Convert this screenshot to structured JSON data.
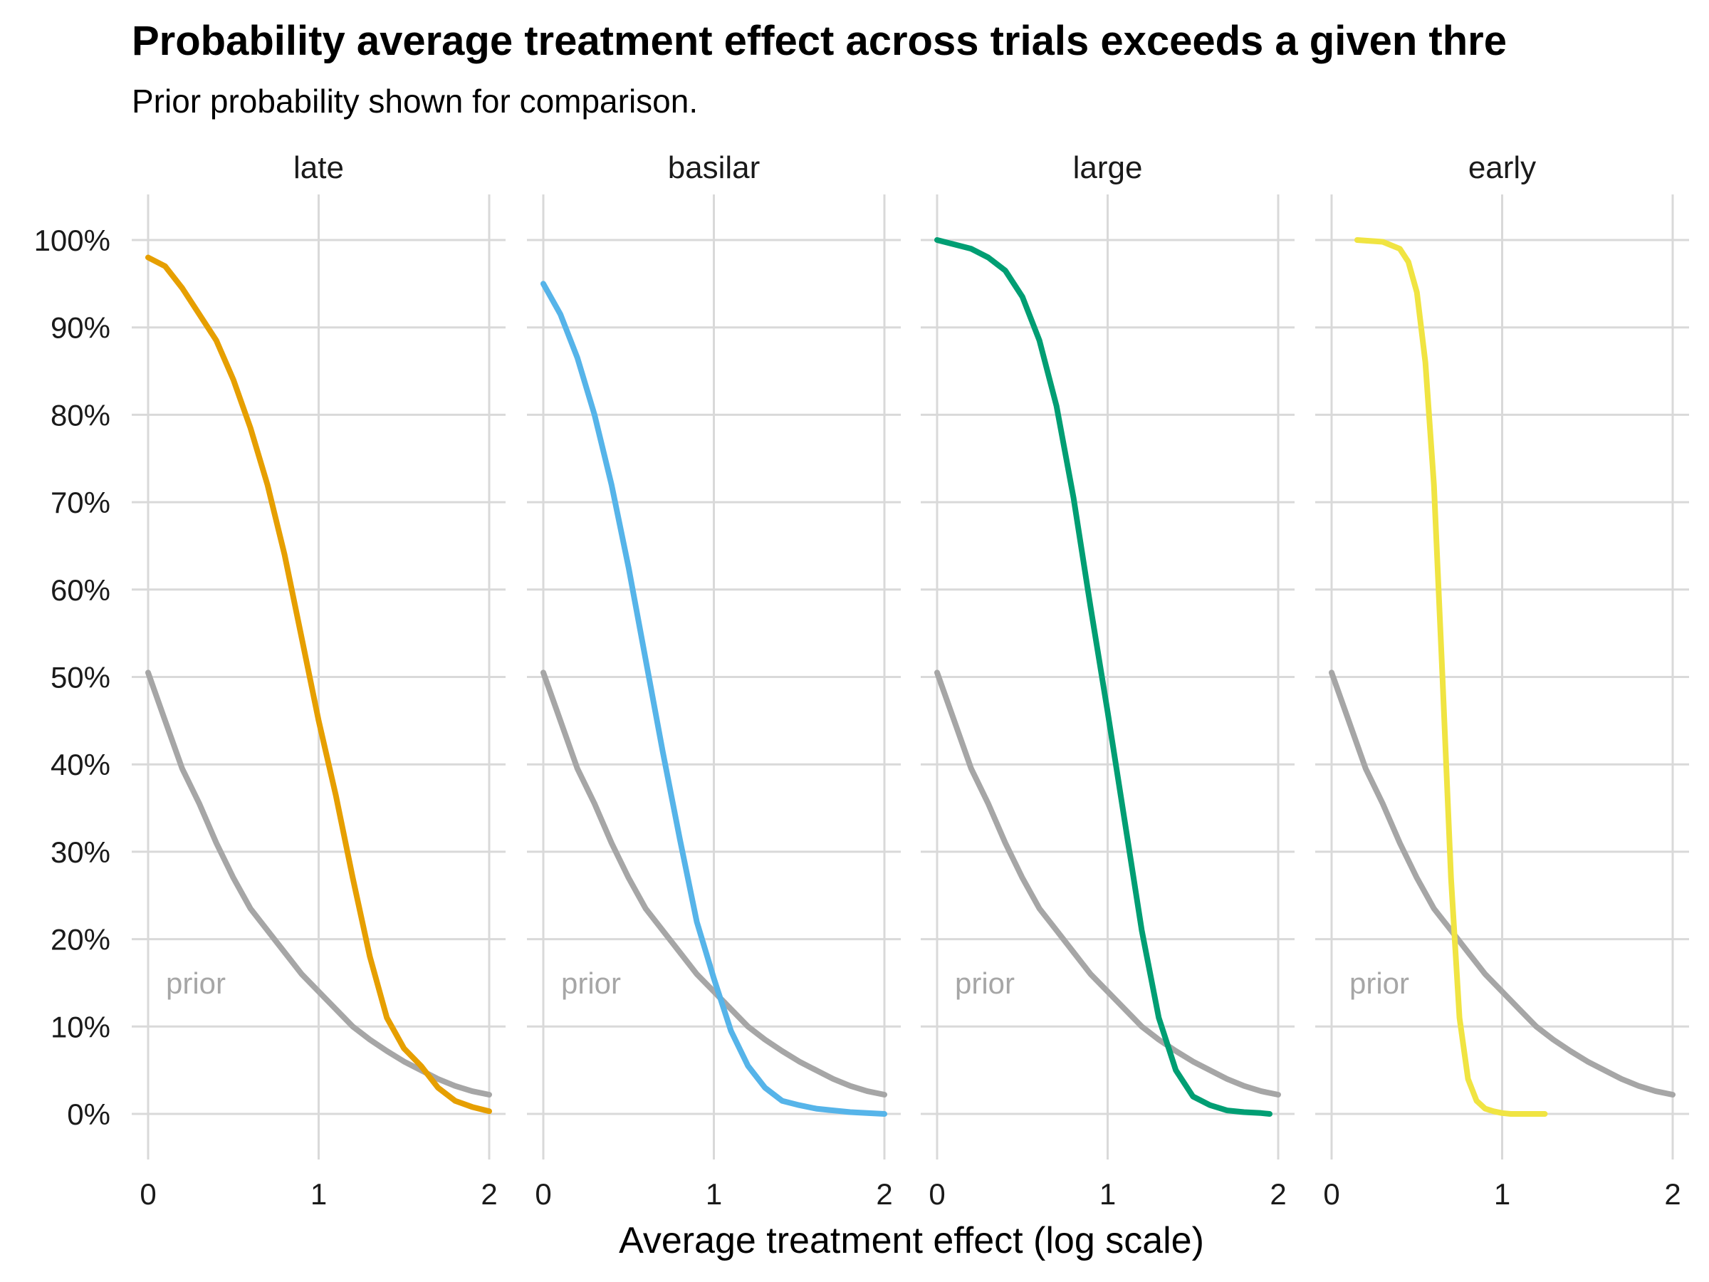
{
  "chart_data": {
    "type": "line",
    "title": "Probability average treatment effect across trials exceeds a given thre",
    "subtitle": "Prior probability shown for comparison.",
    "xlabel": "Average treatment effect (log scale)",
    "ylabel": "",
    "xlim": [
      0,
      2
    ],
    "ylim": [
      0,
      1
    ],
    "x_ticks": [
      0,
      1,
      2
    ],
    "y_ticks": [
      0,
      0.1,
      0.2,
      0.3,
      0.4,
      0.5,
      0.6,
      0.7,
      0.8,
      0.9,
      1.0
    ],
    "y_tick_labels": [
      "0%",
      "10%",
      "20%",
      "30%",
      "40%",
      "50%",
      "60%",
      "70%",
      "80%",
      "90%",
      "100%"
    ],
    "grid": true,
    "legend": "none",
    "prior_label": "prior",
    "prior_color": "#a6a6a6",
    "prior_series": {
      "x": [
        0,
        0.1,
        0.2,
        0.3,
        0.4,
        0.5,
        0.6,
        0.7,
        0.8,
        0.9,
        1.0,
        1.1,
        1.2,
        1.3,
        1.4,
        1.5,
        1.6,
        1.7,
        1.8,
        1.9,
        2.0
      ],
      "y": [
        0.505,
        0.45,
        0.395,
        0.355,
        0.31,
        0.27,
        0.235,
        0.21,
        0.185,
        0.16,
        0.14,
        0.12,
        0.1,
        0.085,
        0.072,
        0.06,
        0.05,
        0.04,
        0.032,
        0.026,
        0.022
      ]
    },
    "facets": [
      {
        "label": "late",
        "color": "#e69f00",
        "x": [
          0,
          0.1,
          0.2,
          0.3,
          0.4,
          0.5,
          0.6,
          0.7,
          0.8,
          0.9,
          1.0,
          1.1,
          1.2,
          1.3,
          1.4,
          1.5,
          1.6,
          1.7,
          1.8,
          1.9,
          2.0
        ],
        "y": [
          0.98,
          0.97,
          0.945,
          0.915,
          0.885,
          0.84,
          0.785,
          0.72,
          0.64,
          0.545,
          0.45,
          0.365,
          0.27,
          0.18,
          0.11,
          0.075,
          0.055,
          0.03,
          0.015,
          0.008,
          0.003
        ]
      },
      {
        "label": "basilar",
        "color": "#56b4e9",
        "x": [
          0,
          0.1,
          0.2,
          0.3,
          0.4,
          0.5,
          0.6,
          0.7,
          0.8,
          0.9,
          1.0,
          1.1,
          1.2,
          1.3,
          1.4,
          1.5,
          1.6,
          1.7,
          1.8,
          1.9,
          2.0
        ],
        "y": [
          0.95,
          0.915,
          0.865,
          0.8,
          0.72,
          0.625,
          0.52,
          0.415,
          0.315,
          0.22,
          0.155,
          0.095,
          0.055,
          0.03,
          0.015,
          0.01,
          0.006,
          0.004,
          0.002,
          0.001,
          0.0
        ]
      },
      {
        "label": "large",
        "color": "#009e73",
        "x": [
          0.0,
          0.1,
          0.2,
          0.3,
          0.4,
          0.5,
          0.6,
          0.7,
          0.8,
          0.9,
          1.0,
          1.1,
          1.2,
          1.3,
          1.4,
          1.5,
          1.6,
          1.7,
          1.8,
          1.9,
          1.95
        ],
        "y": [
          1.0,
          0.995,
          0.99,
          0.98,
          0.965,
          0.935,
          0.885,
          0.81,
          0.705,
          0.58,
          0.46,
          0.335,
          0.21,
          0.11,
          0.05,
          0.02,
          0.01,
          0.004,
          0.002,
          0.001,
          0.0
        ]
      },
      {
        "label": "early",
        "color": "#f0e442",
        "x": [
          0.15,
          0.3,
          0.4,
          0.45,
          0.5,
          0.55,
          0.6,
          0.65,
          0.7,
          0.75,
          0.8,
          0.85,
          0.9,
          0.95,
          1.0,
          1.05,
          1.1,
          1.15,
          1.2,
          1.25
        ],
        "y": [
          1.0,
          0.998,
          0.99,
          0.975,
          0.94,
          0.86,
          0.72,
          0.5,
          0.27,
          0.11,
          0.04,
          0.015,
          0.006,
          0.003,
          0.001,
          0.0,
          0.0,
          0.0,
          0.0,
          0.0
        ]
      }
    ]
  }
}
